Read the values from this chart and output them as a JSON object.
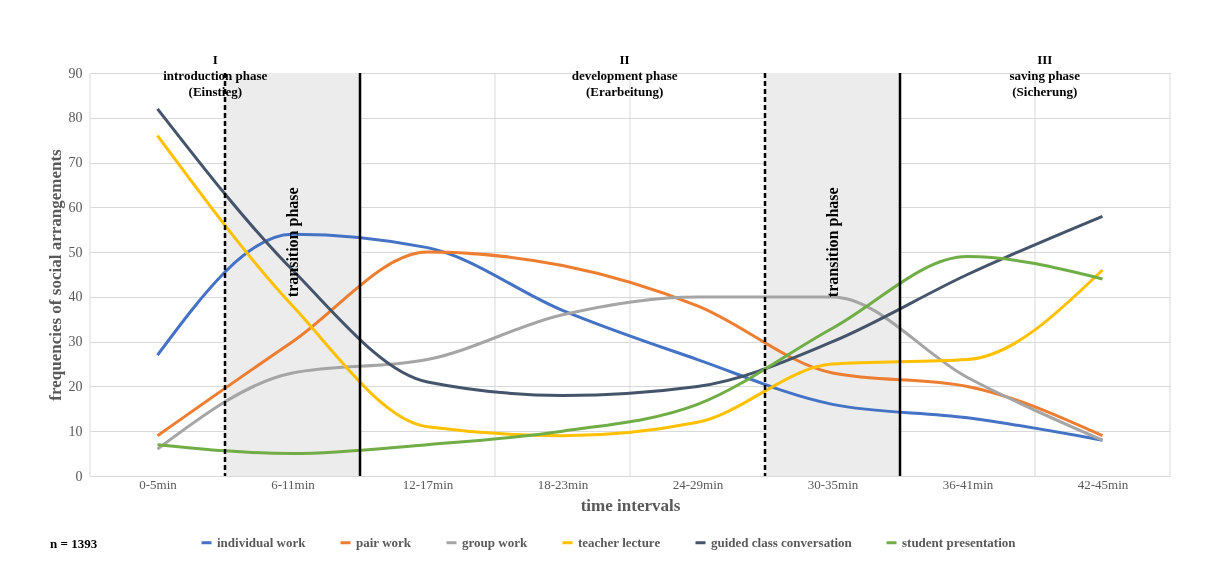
{
  "chart_data": {
    "type": "line",
    "xlabel": "time intervals",
    "ylabel": "frequencies of social arrangements",
    "categories": [
      "0-5min",
      "6-11min",
      "12-17min",
      "18-23min",
      "24-29min",
      "30-35min",
      "36-41min",
      "42-45min"
    ],
    "ylim": [
      0,
      90
    ],
    "yticks": [
      0,
      10,
      20,
      30,
      40,
      50,
      60,
      70,
      80,
      90
    ],
    "grid": true,
    "legend": "bottom",
    "marker": "none",
    "line_style": "solid",
    "series": [
      {
        "name": "individual work",
        "color": "#4472c4",
        "values": [
          27,
          54,
          51,
          37,
          26,
          16,
          13,
          8
        ]
      },
      {
        "name": "pair work",
        "color": "#ed7d31",
        "values": [
          9,
          30,
          50,
          47,
          38,
          23,
          20,
          9
        ]
      },
      {
        "name": "group work",
        "color": "#a5a5a5",
        "values": [
          6,
          23,
          26,
          36,
          40,
          40,
          22,
          8
        ]
      },
      {
        "name": "teacher lecture",
        "color": "#ffc000",
        "values": [
          76,
          38,
          11,
          9,
          12,
          25,
          26,
          46
        ]
      },
      {
        "name": "guided class conversation",
        "color": "#44546a",
        "values": [
          82,
          46,
          21,
          18,
          20,
          30,
          45,
          58
        ]
      },
      {
        "name": "student presentation",
        "color": "#70ad47",
        "values": [
          7,
          5,
          7,
          10,
          16,
          33,
          49,
          44
        ]
      }
    ],
    "bands": [
      {
        "axis": "x",
        "from": "6-11min",
        "to": "6-11min",
        "label": "transition phase",
        "color": "#ececec"
      },
      {
        "axis": "x",
        "from": "30-35min",
        "to": "30-35min",
        "label": "transition phase",
        "color": "#ececec"
      }
    ],
    "annotations": [
      "I\nintroduction phase\n(Einstieg)",
      "II\ndevelopment phase\n(Erarbeitung)",
      "III\nsaving phase\n(Sicherung)",
      "n = 1393"
    ]
  }
}
